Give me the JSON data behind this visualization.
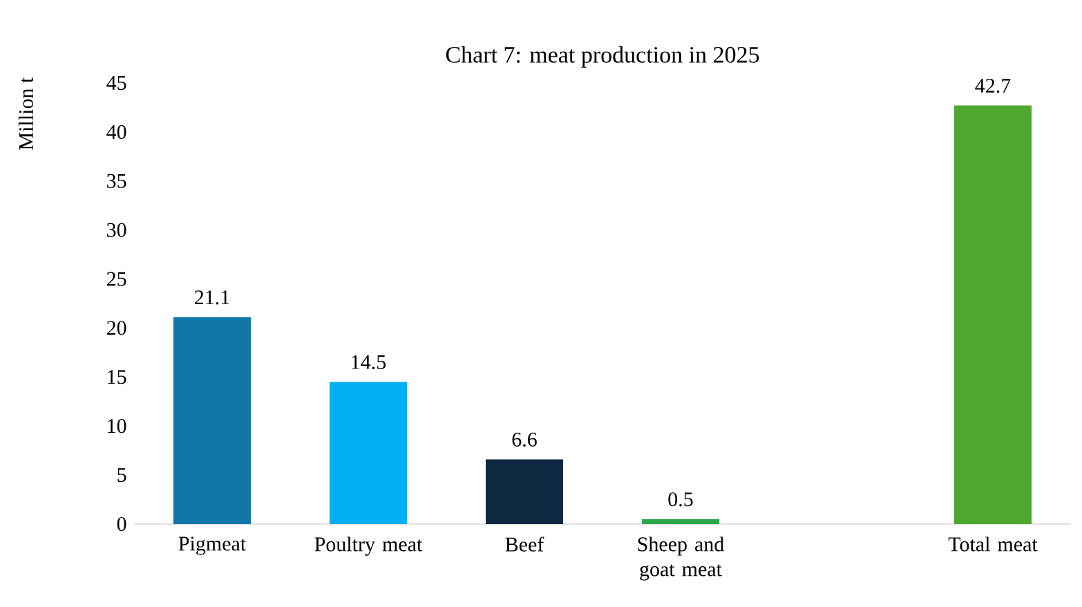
{
  "chart_data": {
    "type": "bar",
    "title": "Chart 7: meat production in 2025",
    "ylabel": "Million t",
    "categories": [
      "Pigmeat",
      "Poultry meat",
      "Beef",
      "Sheep and goat meat",
      null,
      "Total meat"
    ],
    "values": [
      21.1,
      14.5,
      6.6,
      0.5,
      null,
      42.7
    ],
    "colors": [
      "#1077a6",
      "#00b0f0",
      "#0e2841",
      "#2aa84a",
      "#ffffff",
      "#4ea72e"
    ],
    "ylim": [
      0,
      45
    ],
    "yticks": [
      0,
      5,
      10,
      15,
      20,
      25,
      30,
      35,
      40,
      45
    ],
    "data_labels": true
  }
}
